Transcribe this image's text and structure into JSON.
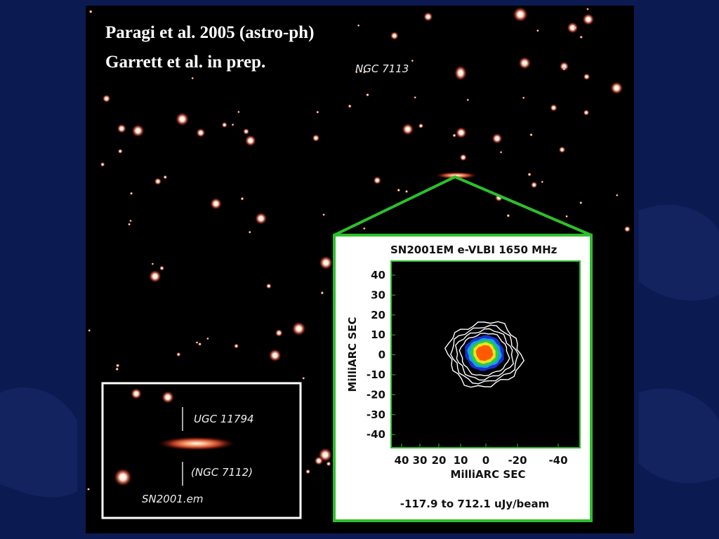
{
  "slide": {
    "credits": [
      "Paragi et al. 2005 (astro-ph)",
      "Garrett et al. in prep."
    ],
    "image_labels": {
      "ngc7113": "NGC 7113"
    },
    "inset": {
      "name": "UGC 11794",
      "alt_name": "(NGC 7112)",
      "supernova": "SN2001.em"
    },
    "vlbi_plot": {
      "title": "SN2001EM  e-VLBI 1650 MHz",
      "y_label": "MilliARC SEC",
      "x_label": "MilliARC SEC",
      "y_ticks": [
        40,
        30,
        20,
        10,
        0,
        -10,
        -20,
        -30,
        -40
      ],
      "x_ticks": [
        40,
        30,
        20,
        10,
        0,
        -20,
        -40
      ],
      "range_note": "-117.9 to 712.1 uJy/beam"
    }
  }
}
